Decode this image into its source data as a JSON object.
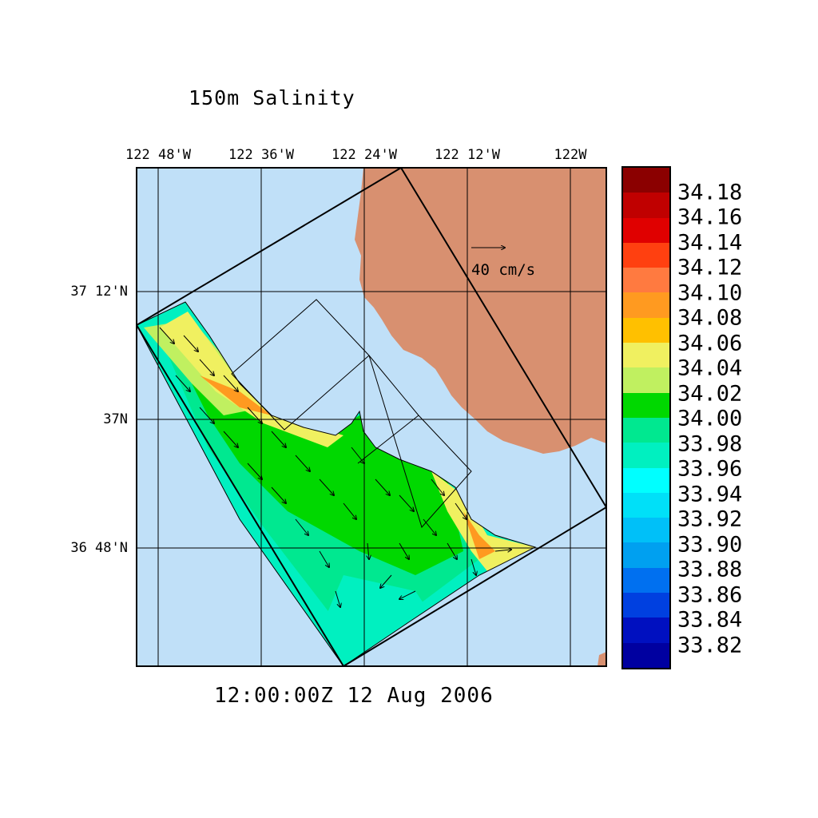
{
  "title": "150m Salinity",
  "timestamp": "12:00:00Z  12 Aug 2006",
  "vector_scale_label": "40 cm/s",
  "lon_labels": [
    "122 48'W",
    "122 36'W",
    "122 24'W",
    "122 12'W",
    "122W"
  ],
  "lat_labels": [
    "37 12'N",
    "37N",
    "36 48'N"
  ],
  "colorbar": {
    "labels": [
      "34.18",
      "34.16",
      "34.14",
      "34.12",
      "34.10",
      "34.08",
      "34.06",
      "34.04",
      "34.02",
      "34.00",
      "33.98",
      "33.96",
      "33.94",
      "33.92",
      "33.90",
      "33.88",
      "33.86",
      "33.84",
      "33.82"
    ],
    "colors": [
      "#8b0000",
      "#c00000",
      "#e00000",
      "#ff4010",
      "#ff7a40",
      "#ff9a20",
      "#ffc000",
      "#f0f060",
      "#c0f060",
      "#00d800",
      "#00e890",
      "#00f0c0",
      "#00ffff",
      "#00e0f8",
      "#00c0f8",
      "#00a0f0",
      "#0070f0",
      "#0040e0",
      "#0010c0",
      "#0000a0"
    ]
  },
  "colors": {
    "ocean": "#c0e0f8",
    "land": "#d89070"
  }
}
